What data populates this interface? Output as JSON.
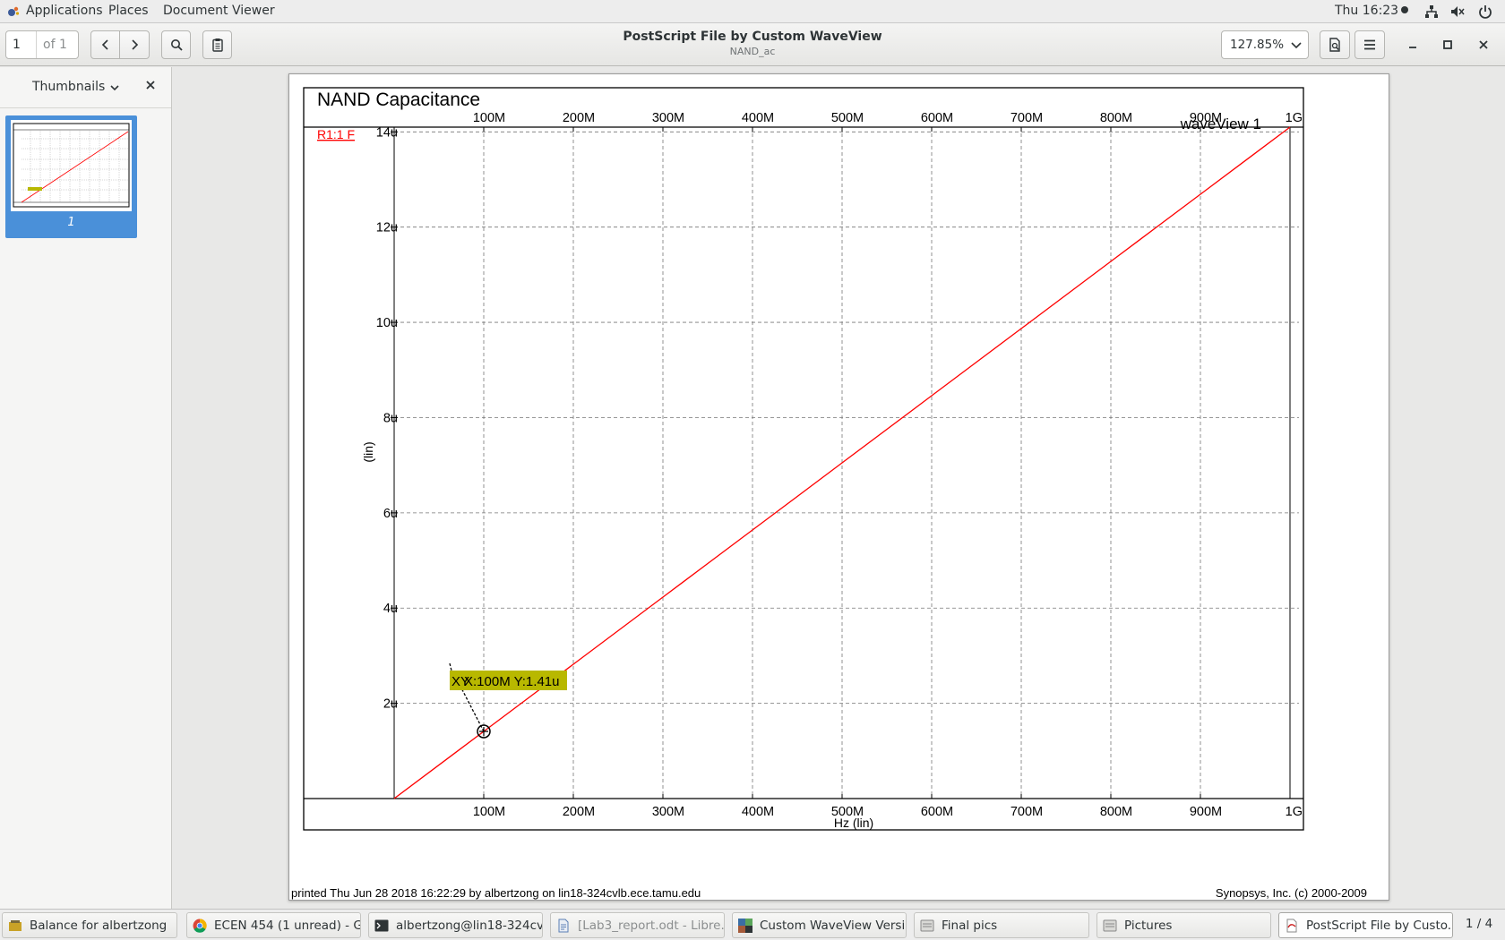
{
  "topbar": {
    "menus": [
      "Applications",
      "Places",
      "Document Viewer"
    ],
    "clock": "Thu 16:23"
  },
  "header": {
    "page_current": "1",
    "page_of": "of 1",
    "title": "PostScript File by Custom WaveView",
    "subtitle": "NAND_ac",
    "zoom": "127.85%"
  },
  "sidebar": {
    "mode_label": "Thumbnails",
    "thumbnail_page_label": "1"
  },
  "page": {
    "footer_left": "printed Thu Jun 28 2018 16:22:29 by albertzong on lin18-324cvlb.ece.tamu.edu",
    "footer_right": "Synopsys, Inc. (c) 2000-2009"
  },
  "chart_data": {
    "type": "line",
    "title": "NAND Capacitance",
    "panel_label": "waveView 1",
    "xlabel": "Hz (lin)",
    "ylabel": "(lin)",
    "x_ticks": [
      "100M",
      "200M",
      "300M",
      "400M",
      "500M",
      "600M",
      "700M",
      "800M",
      "900M",
      "1G"
    ],
    "y_ticks": [
      "2u",
      "4u",
      "6u",
      "8u",
      "10u",
      "12u",
      "14u"
    ],
    "xlim": [
      0,
      1000000000
    ],
    "ylim": [
      0,
      14.1
    ],
    "y_unit_scale": "micro",
    "grid": true,
    "series": [
      {
        "name": "R1:1 F",
        "color": "#ff0000",
        "x": [
          0,
          100000000,
          200000000,
          300000000,
          400000000,
          500000000,
          600000000,
          700000000,
          800000000,
          900000000,
          1000000000
        ],
        "y": [
          0,
          1.41,
          2.82,
          4.23,
          5.64,
          7.05,
          8.46,
          9.87,
          11.28,
          12.69,
          14.1
        ]
      }
    ],
    "marker": {
      "label": "XY",
      "text": "X:100M Y:1.41u",
      "x": 100000000,
      "y": 1.41,
      "color": "#b8b800"
    }
  },
  "taskbar": {
    "items": [
      {
        "label": "Balance for albertzong",
        "icon": "balance-icon"
      },
      {
        "label": "ECEN 454 (1 unread) - G...",
        "icon": "chrome-icon"
      },
      {
        "label": "albertzong@lin18-324cvl...",
        "icon": "terminal-icon"
      },
      {
        "label": "[Lab3_report.odt - Libre...",
        "icon": "document-icon"
      },
      {
        "label": "Custom WaveView Versio...",
        "icon": "waveview-icon"
      },
      {
        "label": "Final pics",
        "icon": "folder-icon"
      },
      {
        "label": "Pictures",
        "icon": "folder-icon"
      },
      {
        "label": "PostScript File by Custo...",
        "icon": "evince-icon"
      }
    ],
    "workspace": "1 / 4"
  },
  "colors": {
    "accent": "#4a90d9",
    "trace": "#ff0000",
    "marker": "#b8b800"
  }
}
